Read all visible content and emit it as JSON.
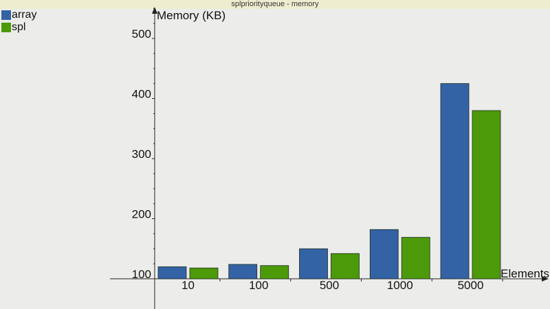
{
  "window": {
    "title": "splpriorityqueue - memory"
  },
  "colors": {
    "array": "#3363a4",
    "spl": "#4c9a0a",
    "background": "#ececea",
    "titlebar": "#efedcf"
  },
  "chart_data": {
    "type": "bar",
    "title": "",
    "xlabel": "Elements",
    "ylabel": "Memory (KB)",
    "categories": [
      "10",
      "100",
      "500",
      "1000",
      "5000"
    ],
    "series": [
      {
        "name": "array",
        "values": [
          120,
          124,
          150,
          182,
          425
        ]
      },
      {
        "name": "spl",
        "values": [
          118,
          122,
          142,
          169,
          380
        ]
      }
    ],
    "yticks": [
      100,
      200,
      300,
      400,
      500
    ],
    "ylim": [
      100,
      550
    ],
    "grid": false,
    "legend_position": "top-left"
  }
}
